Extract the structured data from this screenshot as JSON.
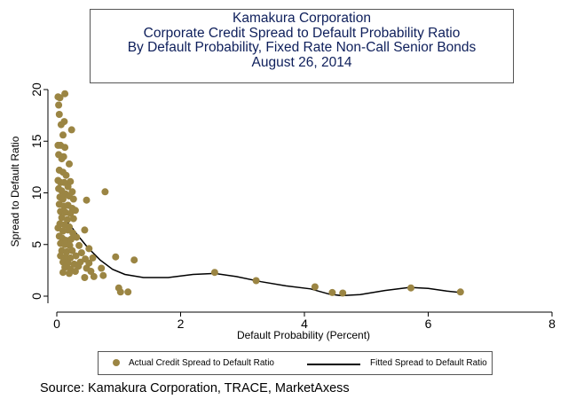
{
  "chart_data": {
    "type": "scatter",
    "title_lines": [
      "Kamakura Corporation",
      "Corporate Credit Spread to Default Probability Ratio",
      "By Default Probability, Fixed Rate Non-Call Senior Bonds",
      "August 26, 2014"
    ],
    "xlabel": "Default Probability (Percent)",
    "ylabel": "Spread to Default Ratio",
    "xlim": [
      0,
      8
    ],
    "ylim": [
      0,
      20
    ],
    "x_ticks": [
      0,
      2,
      4,
      6,
      8
    ],
    "y_ticks": [
      0,
      5,
      10,
      15,
      20
    ],
    "grid": false,
    "legend_position": "bottom",
    "series": [
      {
        "name": "Actual Credit Spread to Default Ratio",
        "kind": "scatter",
        "color": "#9b8543",
        "points": [
          [
            0.02,
            19.3
          ],
          [
            0.05,
            19.2
          ],
          [
            0.13,
            19.6
          ],
          [
            0.03,
            18.5
          ],
          [
            0.12,
            16.9
          ],
          [
            0.04,
            17.6
          ],
          [
            0.07,
            16.6
          ],
          [
            0.24,
            16.1
          ],
          [
            0.1,
            15.6
          ],
          [
            0.02,
            14.6
          ],
          [
            0.06,
            14.6
          ],
          [
            0.13,
            14.4
          ],
          [
            0.03,
            13.7
          ],
          [
            0.08,
            13.3
          ],
          [
            0.11,
            13.5
          ],
          [
            0.2,
            12.8
          ],
          [
            0.04,
            12.2
          ],
          [
            0.1,
            12.0
          ],
          [
            0.15,
            11.7
          ],
          [
            0.02,
            11.2
          ],
          [
            0.06,
            11.0
          ],
          [
            0.12,
            11.0
          ],
          [
            0.18,
            10.6
          ],
          [
            0.22,
            11.1
          ],
          [
            0.03,
            10.4
          ],
          [
            0.08,
            10.2
          ],
          [
            0.14,
            9.9
          ],
          [
            0.25,
            10.1
          ],
          [
            0.05,
            9.6
          ],
          [
            0.1,
            9.4
          ],
          [
            0.2,
            9.7
          ],
          [
            0.27,
            9.4
          ],
          [
            0.78,
            10.1
          ],
          [
            0.48,
            9.3
          ],
          [
            0.04,
            8.9
          ],
          [
            0.12,
            8.7
          ],
          [
            0.18,
            8.8
          ],
          [
            0.25,
            8.5
          ],
          [
            0.06,
            8.2
          ],
          [
            0.14,
            8.1
          ],
          [
            0.22,
            8.0
          ],
          [
            0.3,
            8.3
          ],
          [
            0.08,
            7.6
          ],
          [
            0.17,
            7.4
          ],
          [
            0.27,
            7.5
          ],
          [
            0.05,
            7.0
          ],
          [
            0.12,
            6.9
          ],
          [
            0.2,
            6.7
          ],
          [
            0.02,
            6.6
          ],
          [
            0.1,
            6.3
          ],
          [
            0.18,
            6.4
          ],
          [
            0.26,
            6.1
          ],
          [
            0.45,
            6.4
          ],
          [
            0.04,
            5.8
          ],
          [
            0.09,
            5.6
          ],
          [
            0.15,
            5.4
          ],
          [
            0.23,
            5.5
          ],
          [
            0.32,
            5.7
          ],
          [
            0.06,
            5.1
          ],
          [
            0.13,
            5.0
          ],
          [
            0.21,
            4.9
          ],
          [
            0.36,
            4.9
          ],
          [
            0.52,
            4.6
          ],
          [
            0.08,
            4.4
          ],
          [
            0.16,
            4.3
          ],
          [
            0.25,
            4.4
          ],
          [
            0.4,
            4.2
          ],
          [
            0.06,
            3.9
          ],
          [
            0.14,
            3.8
          ],
          [
            0.22,
            3.7
          ],
          [
            0.31,
            3.9
          ],
          [
            0.46,
            3.6
          ],
          [
            0.58,
            3.7
          ],
          [
            0.1,
            3.3
          ],
          [
            0.18,
            3.2
          ],
          [
            0.28,
            3.1
          ],
          [
            0.38,
            3.3
          ],
          [
            0.52,
            3.2
          ],
          [
            0.13,
            2.8
          ],
          [
            0.22,
            2.6
          ],
          [
            0.35,
            2.9
          ],
          [
            0.48,
            2.7
          ],
          [
            0.1,
            2.3
          ],
          [
            0.2,
            2.2
          ],
          [
            0.3,
            2.4
          ],
          [
            0.45,
            1.8
          ],
          [
            0.6,
            1.9
          ],
          [
            0.75,
            2.0
          ],
          [
            0.55,
            2.4
          ],
          [
            0.95,
            3.8
          ],
          [
            1.25,
            3.5
          ],
          [
            0.72,
            2.7
          ],
          [
            1.0,
            0.8
          ],
          [
            1.03,
            0.4
          ],
          [
            1.15,
            0.4
          ],
          [
            2.55,
            2.3
          ],
          [
            3.22,
            1.5
          ],
          [
            4.17,
            0.9
          ],
          [
            4.45,
            0.35
          ],
          [
            4.62,
            0.3
          ],
          [
            5.72,
            0.8
          ],
          [
            6.52,
            0.4
          ]
        ]
      },
      {
        "name": "Fitted Spread to Default Ratio",
        "kind": "line",
        "color": "#000000",
        "points": [
          [
            0.15,
            7.3
          ],
          [
            0.25,
            6.6
          ],
          [
            0.35,
            5.8
          ],
          [
            0.5,
            4.7
          ],
          [
            0.7,
            3.5
          ],
          [
            0.9,
            2.6
          ],
          [
            1.1,
            2.1
          ],
          [
            1.4,
            1.8
          ],
          [
            1.8,
            1.8
          ],
          [
            2.2,
            2.1
          ],
          [
            2.55,
            2.2
          ],
          [
            2.9,
            1.9
          ],
          [
            3.3,
            1.4
          ],
          [
            3.7,
            1.0
          ],
          [
            4.1,
            0.7
          ],
          [
            4.4,
            0.2
          ],
          [
            4.6,
            0.05
          ],
          [
            4.9,
            0.15
          ],
          [
            5.3,
            0.55
          ],
          [
            5.7,
            0.85
          ],
          [
            6.0,
            0.75
          ],
          [
            6.3,
            0.5
          ],
          [
            6.52,
            0.35
          ]
        ]
      }
    ],
    "source": "Source: Kamakura Corporation, TRACE, MarketAxess"
  }
}
